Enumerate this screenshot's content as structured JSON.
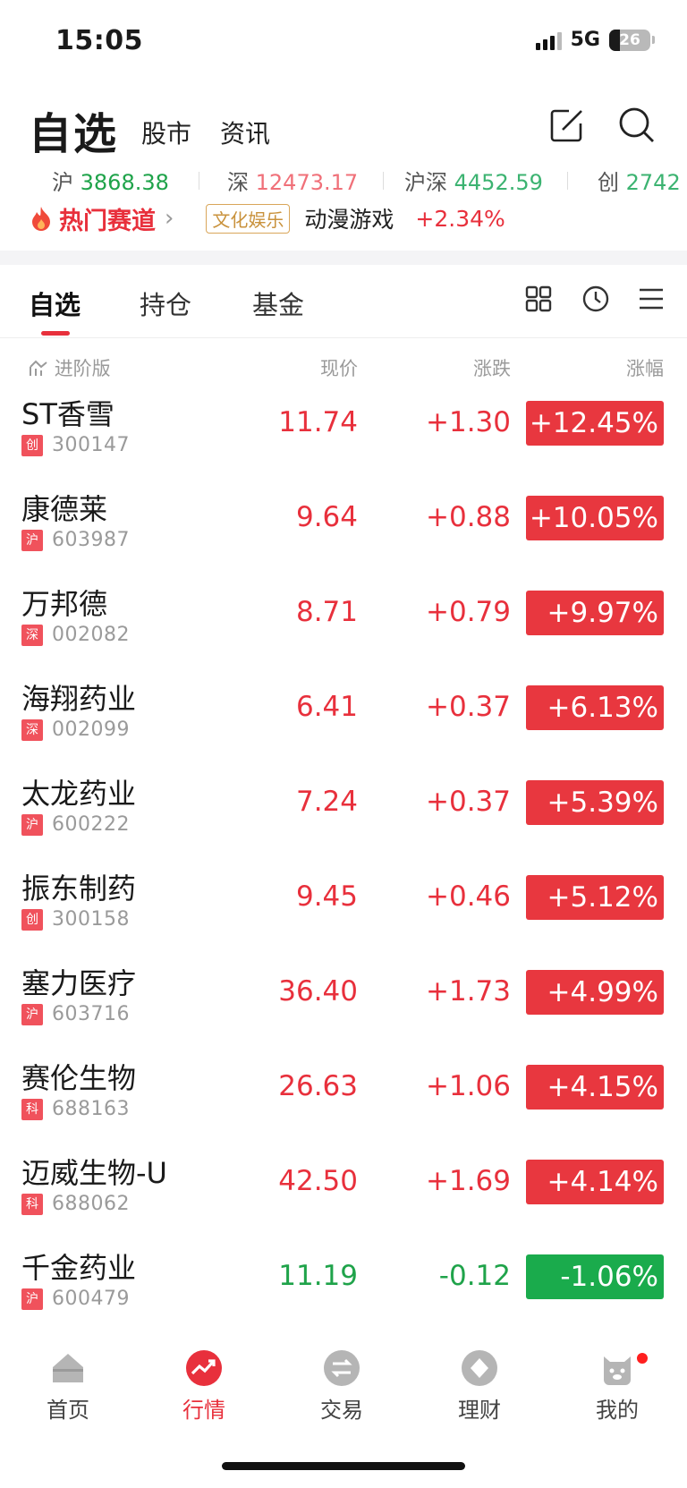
{
  "status_bar": {
    "time": "15:05",
    "network": "5G",
    "battery": "26",
    "battery_level": 0.26
  },
  "header": {
    "title": "自选",
    "tabs": [
      "股市",
      "资讯"
    ],
    "icons": [
      "edit-icon",
      "search-icon"
    ]
  },
  "indices": [
    {
      "name": "沪",
      "value": "3868.38",
      "trend": "down"
    },
    {
      "name": "深",
      "value": "12473.17",
      "trend": "up"
    },
    {
      "name": "沪深",
      "value": "4452.59",
      "trend": "down"
    },
    {
      "name": "创",
      "value": "2742",
      "trend": "down"
    }
  ],
  "hot_track": {
    "title": "热门赛道",
    "badge": "文化娱乐",
    "sector": "动漫游戏",
    "change": "+2.34%"
  },
  "tabs": [
    "自选",
    "持仓",
    "基金"
  ],
  "columns": {
    "advanced": "进阶版",
    "price": "现价",
    "change": "涨跌",
    "percent": "涨幅"
  },
  "stocks": [
    {
      "name": "ST香雪",
      "market": "创",
      "code": "300147",
      "price": "11.74",
      "change": "+1.30",
      "percent": "+12.45%",
      "trend": "up"
    },
    {
      "name": "康德莱",
      "market": "沪",
      "code": "603987",
      "price": "9.64",
      "change": "+0.88",
      "percent": "+10.05%",
      "trend": "up"
    },
    {
      "name": "万邦德",
      "market": "深",
      "code": "002082",
      "price": "8.71",
      "change": "+0.79",
      "percent": "+9.97%",
      "trend": "up"
    },
    {
      "name": "海翔药业",
      "market": "深",
      "code": "002099",
      "price": "6.41",
      "change": "+0.37",
      "percent": "+6.13%",
      "trend": "up"
    },
    {
      "name": "太龙药业",
      "market": "沪",
      "code": "600222",
      "price": "7.24",
      "change": "+0.37",
      "percent": "+5.39%",
      "trend": "up"
    },
    {
      "name": "振东制药",
      "market": "创",
      "code": "300158",
      "price": "9.45",
      "change": "+0.46",
      "percent": "+5.12%",
      "trend": "up"
    },
    {
      "name": "塞力医疗",
      "market": "沪",
      "code": "603716",
      "price": "36.40",
      "change": "+1.73",
      "percent": "+4.99%",
      "trend": "up"
    },
    {
      "name": "赛伦生物",
      "market": "科",
      "code": "688163",
      "price": "26.63",
      "change": "+1.06",
      "percent": "+4.15%",
      "trend": "up"
    },
    {
      "name": "迈威生物-U",
      "market": "科",
      "code": "688062",
      "price": "42.50",
      "change": "+1.69",
      "percent": "+4.14%",
      "trend": "up"
    },
    {
      "name": "千金药业",
      "market": "沪",
      "code": "600479",
      "price": "11.19",
      "change": "-0.12",
      "percent": "-1.06%",
      "trend": "down"
    }
  ],
  "bottom_nav": [
    {
      "label": "首页",
      "icon": "home-icon"
    },
    {
      "label": "行情",
      "icon": "market-icon",
      "active": true
    },
    {
      "label": "交易",
      "icon": "trade-icon"
    },
    {
      "label": "理财",
      "icon": "wealth-icon"
    },
    {
      "label": "我的",
      "icon": "profile-icon",
      "badge": true
    }
  ],
  "colors": {
    "up": "#e8303c",
    "down": "#1fa34a",
    "accent": "#e8303c"
  }
}
